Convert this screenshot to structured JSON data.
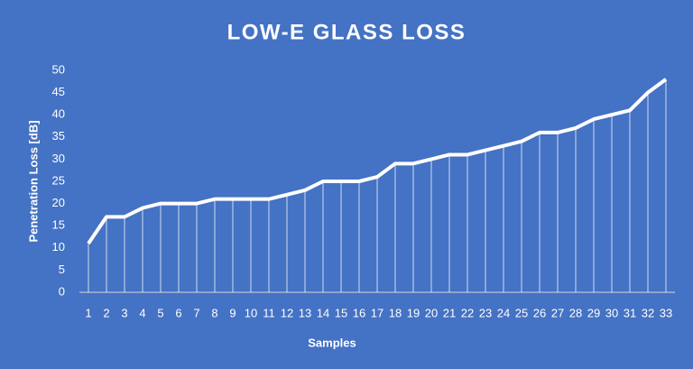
{
  "chart_data": {
    "type": "line",
    "title": "LOW-E GLASS LOSS",
    "x_label": "Samples",
    "y_label": "Penetration Loss [dB]",
    "categories": [
      "1",
      "2",
      "3",
      "4",
      "5",
      "6",
      "7",
      "8",
      "9",
      "10",
      "11",
      "12",
      "13",
      "14",
      "15",
      "16",
      "17",
      "18",
      "19",
      "20",
      "21",
      "22",
      "23",
      "24",
      "25",
      "26",
      "27",
      "28",
      "29",
      "30",
      "31",
      "32",
      "33"
    ],
    "series": [
      {
        "name": "Penetration Loss",
        "color": "#ffffff",
        "values": [
          11,
          17,
          17,
          19,
          20,
          20,
          20,
          21,
          21,
          21,
          21,
          22,
          23,
          25,
          25,
          25,
          26,
          29,
          29,
          30,
          31,
          31,
          32,
          33,
          34,
          36,
          36,
          37,
          39,
          40,
          41,
          45,
          48
        ]
      }
    ],
    "ylim": [
      0,
      50
    ],
    "yticks": [
      0,
      5,
      10,
      15,
      20,
      25,
      30,
      35,
      40,
      45,
      50
    ],
    "drop_lines": true
  }
}
